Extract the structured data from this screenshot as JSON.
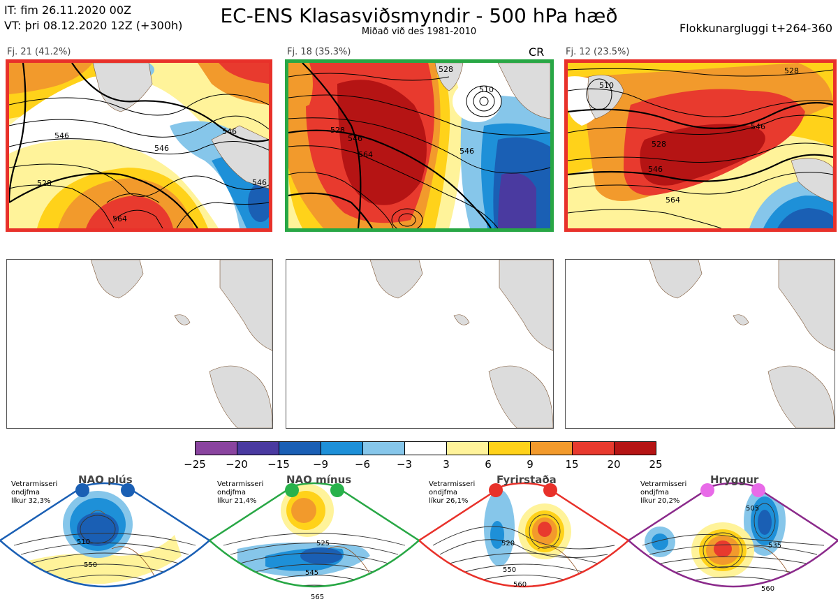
{
  "header": {
    "it_line": "IT: fim 26.11.2020 00Z",
    "vt_line": "VT: þri 08.12.2020 12Z  (+300h)",
    "title": "EC-ENS Klasasviðsmyndir - 500 hPa hæð",
    "subtitle": "Miðað við des 1981-2010",
    "window": "Flokkunargluggi t+264-360"
  },
  "clusters": [
    {
      "label": "Fj. 21 (41.2%)",
      "border_color": "#e8312a",
      "badge": "",
      "contours": [
        "528",
        "546",
        "546",
        "546",
        "564",
        "546"
      ]
    },
    {
      "label": "Fj. 18 (35.3%)",
      "border_color": "#28a745",
      "badge": "CR",
      "contours": [
        "510",
        "528",
        "528",
        "546",
        "546",
        "564"
      ]
    },
    {
      "label": "Fj. 12 (23.5%)",
      "border_color": "#e8312a",
      "badge": "",
      "contours": [
        "510",
        "528",
        "528",
        "546",
        "546",
        "564"
      ]
    }
  ],
  "colorbar": {
    "colors": [
      "#8a449f",
      "#4a3aa0",
      "#1a5fb4",
      "#1e90d8",
      "#86c6ea",
      "#ffffff",
      "#fff39a",
      "#ffd21a",
      "#f29a2c",
      "#e83a2e",
      "#b51414"
    ],
    "ticks": [
      "−25",
      "−20",
      "−15",
      "−9",
      "−6",
      "−3",
      "3",
      "6",
      "9",
      "15",
      "20",
      "25"
    ]
  },
  "regimes": [
    {
      "name": "NAO plús",
      "note": [
        "Vetrarmisseri",
        "ondjfma",
        "líkur 32,3%"
      ],
      "dot_color": "#1a5fb4",
      "border_color": "#1a5fb4",
      "contours": [
        "510",
        "550"
      ]
    },
    {
      "name": "NAO mínus",
      "note": [
        "Vetrarmisseri",
        "ondjfma",
        "líkur 21,4%"
      ],
      "dot_color": "#28b24b",
      "border_color": "#28a745",
      "contours": [
        "525",
        "545",
        "565"
      ]
    },
    {
      "name": "Fyrirstaða",
      "note": [
        "Vetrarmisseri",
        "ondjfma",
        "líkur 26,1%"
      ],
      "dot_color": "#e8312a",
      "border_color": "#e8312a",
      "contours": [
        "520",
        "550",
        "560"
      ]
    },
    {
      "name": "Hryggur",
      "note": [
        "Vetrarmisseri",
        "ondjfma",
        "líkur 20,2%"
      ],
      "dot_color": "#e86ae8",
      "border_color": "#8b2a8b",
      "contours": [
        "505",
        "535",
        "560"
      ]
    }
  ]
}
